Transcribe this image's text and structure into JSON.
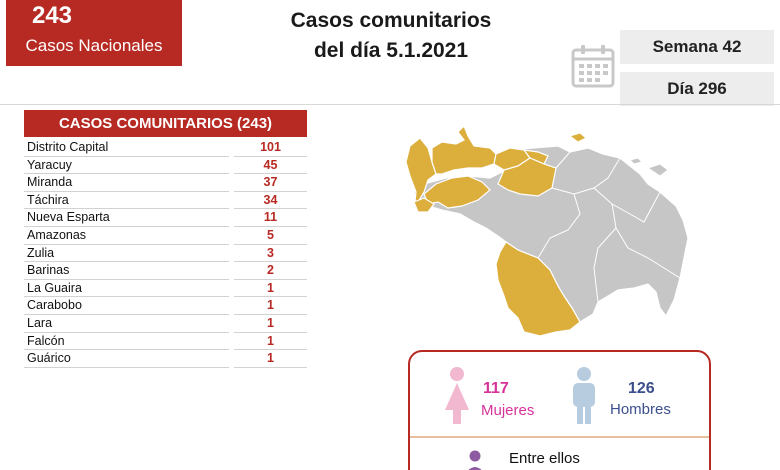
{
  "national": {
    "count": "243",
    "label": "Casos Nacionales"
  },
  "title": {
    "line1": "Casos comunitarios",
    "line2": "del día 5.1.2021"
  },
  "week": "Semana 42",
  "day": "Día 296",
  "table": {
    "header": "CASOS COMUNITARIOS (243)",
    "rows": [
      {
        "state": "Distrito Capital",
        "count": "101"
      },
      {
        "state": "Yaracuy",
        "count": "45"
      },
      {
        "state": "Miranda",
        "count": "37"
      },
      {
        "state": "Táchira",
        "count": "34"
      },
      {
        "state": "Nueva Esparta",
        "count": "11"
      },
      {
        "state": "Amazonas",
        "count": "5"
      },
      {
        "state": "Zulia",
        "count": "3"
      },
      {
        "state": "Barinas",
        "count": "2"
      },
      {
        "state": "La Guaira",
        "count": "1"
      },
      {
        "state": "Carabobo",
        "count": "1"
      },
      {
        "state": "Lara",
        "count": "1"
      },
      {
        "state": "Falcón",
        "count": "1"
      },
      {
        "state": "Guárico",
        "count": "1"
      }
    ]
  },
  "gender": {
    "women_count": "117",
    "women_label": "Mujeres",
    "men_count": "126",
    "men_label": "Hombres",
    "note": "Entre ellos"
  },
  "colors": {
    "accent_red": "#b72a23",
    "map_affected": "#dcae3c",
    "map_other": "#c6c6c6",
    "women": "#d6329a",
    "men": "#3b4f8c",
    "women_icon": "#f1b8cf",
    "men_icon": "#b7ccdf"
  },
  "icons": [
    "calendar-icon",
    "woman-icon",
    "man-icon",
    "person-icon"
  ]
}
